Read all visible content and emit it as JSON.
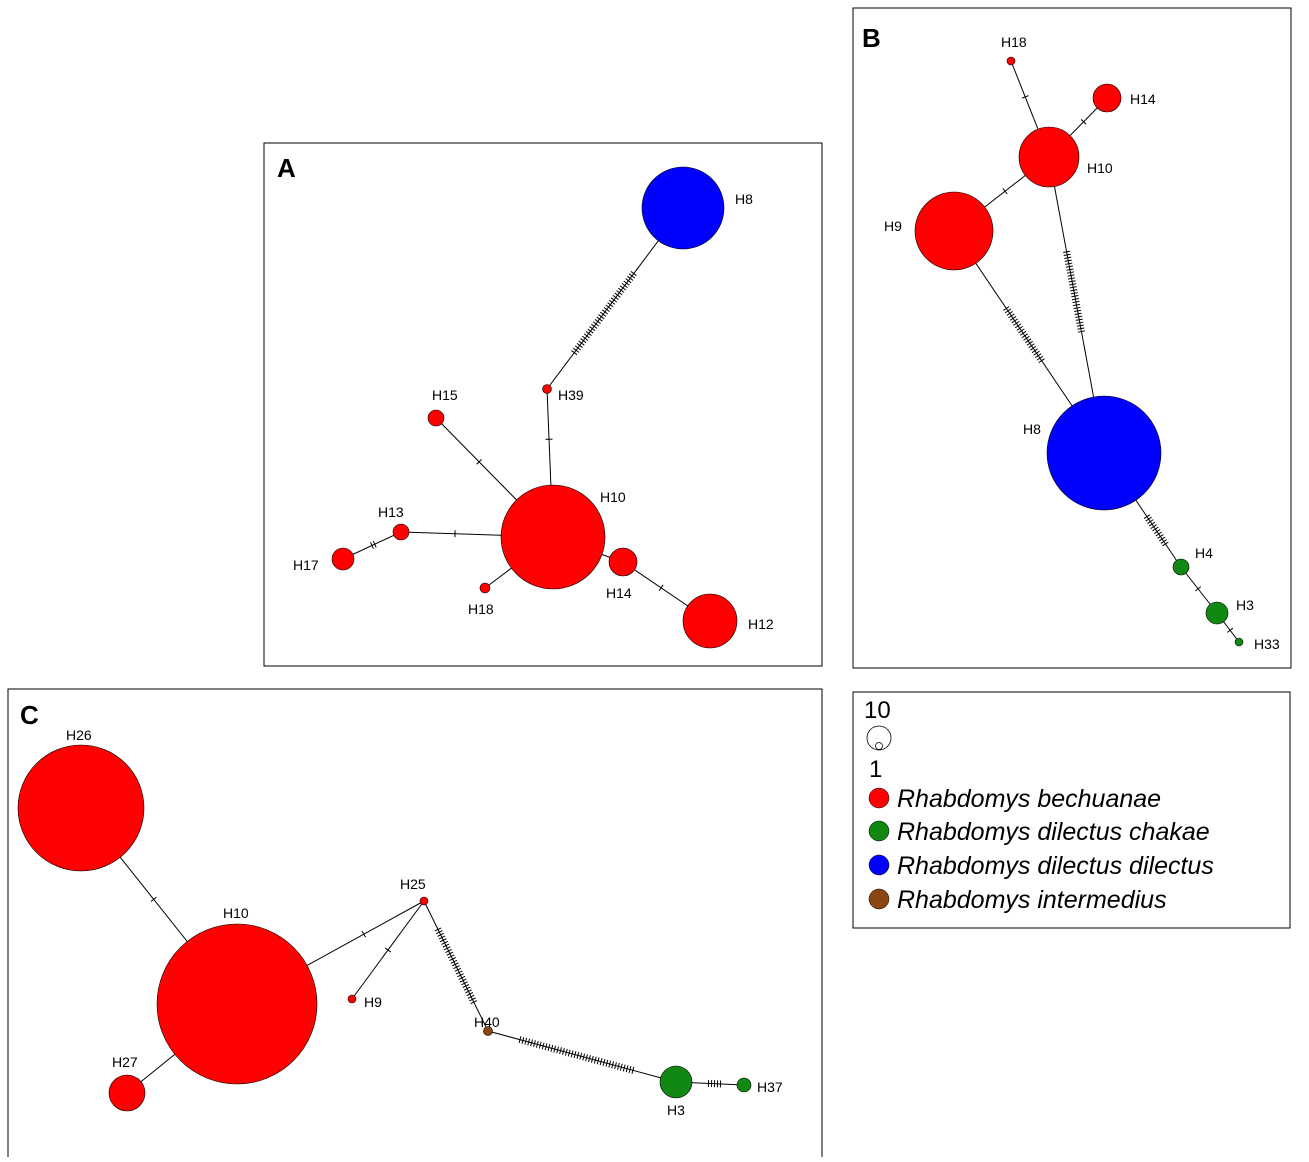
{
  "colors": {
    "Rhabdomys bechuanae": "#ff0000",
    "Rhabdomys dilectus chakae": "#118811",
    "Rhabdomys dilectus dilectus": "#0000ff",
    "Rhabdomys intermedius": "#8b4513"
  },
  "legend": {
    "size_max": "10",
    "size_min": "1",
    "items": [
      {
        "label": "Rhabdomys bechuanae",
        "color": "#ff0000"
      },
      {
        "label": "Rhabdomys dilectus chakae",
        "color": "#118811"
      },
      {
        "label": "Rhabdomys dilectus dilectus",
        "color": "#0000ff"
      },
      {
        "label": "Rhabdomys intermedius",
        "color": "#8b4513"
      }
    ]
  },
  "panels": [
    {
      "id": "A",
      "label": "A",
      "nodes": [
        {
          "id": "H8",
          "label": "H8",
          "species": "Rhabdomys dilectus dilectus"
        },
        {
          "id": "H39",
          "label": "H39",
          "species": "Rhabdomys bechuanae"
        },
        {
          "id": "H15",
          "label": "H15",
          "species": "Rhabdomys bechuanae"
        },
        {
          "id": "H10",
          "label": "H10",
          "species": "Rhabdomys bechuanae"
        },
        {
          "id": "H13",
          "label": "H13",
          "species": "Rhabdomys bechuanae"
        },
        {
          "id": "H17",
          "label": "H17",
          "species": "Rhabdomys bechuanae"
        },
        {
          "id": "H18",
          "label": "H18",
          "species": "Rhabdomys bechuanae"
        },
        {
          "id": "H14",
          "label": "H14",
          "species": "Rhabdomys bechuanae"
        },
        {
          "id": "H12",
          "label": "H12",
          "species": "Rhabdomys bechuanae"
        }
      ],
      "edges": [
        {
          "from": "H8",
          "to": "H39",
          "mutations": 34
        },
        {
          "from": "H39",
          "to": "H10",
          "mutations": 1
        },
        {
          "from": "H15",
          "to": "H10",
          "mutations": 1
        },
        {
          "from": "H13",
          "to": "H10",
          "mutations": 1
        },
        {
          "from": "H17",
          "to": "H13",
          "mutations": 2
        },
        {
          "from": "H18",
          "to": "H10",
          "mutations": 0
        },
        {
          "from": "H10",
          "to": "H14",
          "mutations": 0
        },
        {
          "from": "H14",
          "to": "H12",
          "mutations": 1
        }
      ]
    },
    {
      "id": "B",
      "label": "B",
      "nodes": [
        {
          "id": "H18",
          "label": "H18",
          "species": "Rhabdomys bechuanae"
        },
        {
          "id": "H14",
          "label": "H14",
          "species": "Rhabdomys bechuanae"
        },
        {
          "id": "H10",
          "label": "H10",
          "species": "Rhabdomys bechuanae"
        },
        {
          "id": "H9",
          "label": "H9",
          "species": "Rhabdomys bechuanae"
        },
        {
          "id": "H8",
          "label": "H8",
          "species": "Rhabdomys dilectus dilectus"
        },
        {
          "id": "H4",
          "label": "H4",
          "species": "Rhabdomys dilectus chakae"
        },
        {
          "id": "H3",
          "label": "H3",
          "species": "Rhabdomys dilectus chakae"
        },
        {
          "id": "H33",
          "label": "H33",
          "species": "Rhabdomys dilectus chakae"
        }
      ],
      "edges": [
        {
          "from": "H18",
          "to": "H10",
          "mutations": 1
        },
        {
          "from": "H14",
          "to": "H10",
          "mutations": 1
        },
        {
          "from": "H10",
          "to": "H9",
          "mutations": 1
        },
        {
          "from": "H9",
          "to": "H8",
          "mutations": 22
        },
        {
          "from": "H10",
          "to": "H8",
          "mutations": 28
        },
        {
          "from": "H8",
          "to": "H4",
          "mutations": 12
        },
        {
          "from": "H4",
          "to": "H3",
          "mutations": 1
        },
        {
          "from": "H3",
          "to": "H33",
          "mutations": 1
        }
      ]
    },
    {
      "id": "C",
      "label": "C",
      "nodes": [
        {
          "id": "H26",
          "label": "H26",
          "species": "Rhabdomys bechuanae"
        },
        {
          "id": "H10",
          "label": "H10",
          "species": "Rhabdomys bechuanae"
        },
        {
          "id": "H27",
          "label": "H27",
          "species": "Rhabdomys bechuanae"
        },
        {
          "id": "H25",
          "label": "H25",
          "species": "Rhabdomys bechuanae"
        },
        {
          "id": "H9",
          "label": "H9",
          "species": "Rhabdomys bechuanae"
        },
        {
          "id": "H40",
          "label": "H40",
          "species": "Rhabdomys intermedius"
        },
        {
          "id": "H3",
          "label": "H3",
          "species": "Rhabdomys dilectus chakae"
        },
        {
          "id": "H37",
          "label": "H37",
          "species": "Rhabdomys dilectus chakae"
        }
      ],
      "edges": [
        {
          "from": "H26",
          "to": "H10",
          "mutations": 1
        },
        {
          "from": "H10",
          "to": "H27",
          "mutations": 0
        },
        {
          "from": "H10",
          "to": "H25",
          "mutations": 1
        },
        {
          "from": "H25",
          "to": "H9",
          "mutations": 1
        },
        {
          "from": "H25",
          "to": "H40",
          "mutations": 28
        },
        {
          "from": "H40",
          "to": "H3",
          "mutations": 40
        },
        {
          "from": "H3",
          "to": "H37",
          "mutations": 5
        }
      ]
    }
  ]
}
